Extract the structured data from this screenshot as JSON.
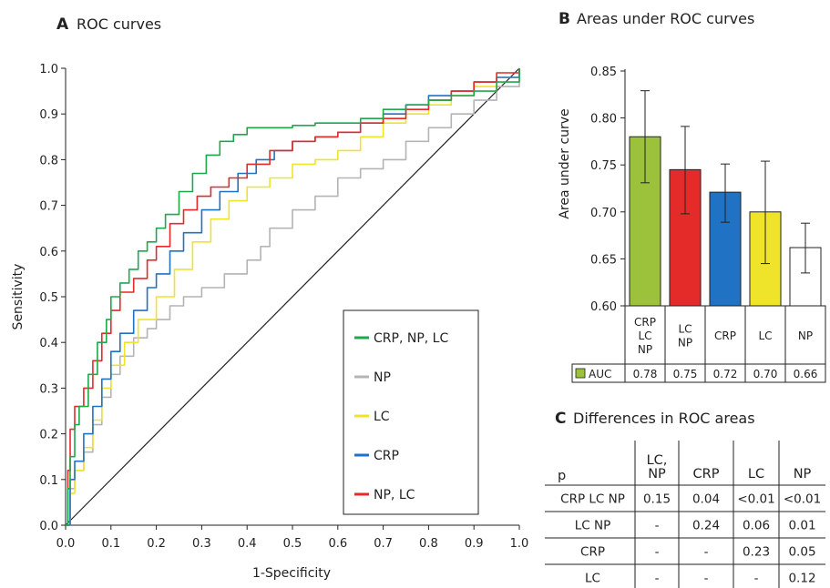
{
  "chart_data": [
    {
      "panel": "A",
      "type": "line",
      "title": "ROC curves",
      "xlabel": "1-Specificity",
      "ylabel": "Sensitivity",
      "xlim": [
        0,
        1
      ],
      "ylim": [
        0,
        1
      ],
      "x_ticks": [
        "0.0",
        "0.1",
        "0.2",
        "0.3",
        "0.4",
        "0.5",
        "0.6",
        "0.7",
        "0.8",
        "0.9",
        "1.0"
      ],
      "y_ticks": [
        "0.0",
        "0.1",
        "0.2",
        "0.3",
        "0.4",
        "0.5",
        "0.6",
        "0.7",
        "0.8",
        "0.9",
        "1.0"
      ],
      "grid": false,
      "legend_position": "bottom-right",
      "series": [
        {
          "name": "CRP, NP, LC",
          "color": "#1fa84a",
          "points": [
            [
              0,
              0
            ],
            [
              0.005,
              0.08
            ],
            [
              0.01,
              0.15
            ],
            [
              0.02,
              0.22
            ],
            [
              0.03,
              0.26
            ],
            [
              0.05,
              0.33
            ],
            [
              0.07,
              0.4
            ],
            [
              0.09,
              0.45
            ],
            [
              0.1,
              0.5
            ],
            [
              0.12,
              0.53
            ],
            [
              0.14,
              0.56
            ],
            [
              0.16,
              0.6
            ],
            [
              0.18,
              0.62
            ],
            [
              0.2,
              0.65
            ],
            [
              0.22,
              0.68
            ],
            [
              0.25,
              0.73
            ],
            [
              0.28,
              0.77
            ],
            [
              0.31,
              0.81
            ],
            [
              0.34,
              0.84
            ],
            [
              0.37,
              0.855
            ],
            [
              0.4,
              0.87
            ],
            [
              0.45,
              0.87
            ],
            [
              0.5,
              0.875
            ],
            [
              0.55,
              0.88
            ],
            [
              0.6,
              0.88
            ],
            [
              0.65,
              0.89
            ],
            [
              0.7,
              0.91
            ],
            [
              0.75,
              0.92
            ],
            [
              0.8,
              0.93
            ],
            [
              0.85,
              0.94
            ],
            [
              0.9,
              0.95
            ],
            [
              0.95,
              0.97
            ],
            [
              1.0,
              1.0
            ]
          ]
        },
        {
          "name": "NP",
          "color": "#b4b4b4",
          "points": [
            [
              0,
              0
            ],
            [
              0.01,
              0.08
            ],
            [
              0.02,
              0.12
            ],
            [
              0.04,
              0.16
            ],
            [
              0.06,
              0.22
            ],
            [
              0.08,
              0.28
            ],
            [
              0.1,
              0.33
            ],
            [
              0.12,
              0.37
            ],
            [
              0.15,
              0.41
            ],
            [
              0.18,
              0.43
            ],
            [
              0.2,
              0.45
            ],
            [
              0.23,
              0.48
            ],
            [
              0.26,
              0.5
            ],
            [
              0.3,
              0.52
            ],
            [
              0.35,
              0.55
            ],
            [
              0.4,
              0.58
            ],
            [
              0.43,
              0.61
            ],
            [
              0.45,
              0.65
            ],
            [
              0.5,
              0.69
            ],
            [
              0.55,
              0.72
            ],
            [
              0.6,
              0.76
            ],
            [
              0.65,
              0.78
            ],
            [
              0.7,
              0.8
            ],
            [
              0.75,
              0.84
            ],
            [
              0.8,
              0.87
            ],
            [
              0.85,
              0.9
            ],
            [
              0.9,
              0.93
            ],
            [
              0.95,
              0.96
            ],
            [
              1.0,
              1.0
            ]
          ]
        },
        {
          "name": "LC",
          "color": "#f0e42a",
          "points": [
            [
              0,
              0
            ],
            [
              0.01,
              0.07
            ],
            [
              0.02,
              0.12
            ],
            [
              0.04,
              0.17
            ],
            [
              0.06,
              0.23
            ],
            [
              0.08,
              0.3
            ],
            [
              0.1,
              0.35
            ],
            [
              0.13,
              0.4
            ],
            [
              0.16,
              0.45
            ],
            [
              0.2,
              0.5
            ],
            [
              0.24,
              0.56
            ],
            [
              0.28,
              0.62
            ],
            [
              0.32,
              0.67
            ],
            [
              0.36,
              0.71
            ],
            [
              0.4,
              0.74
            ],
            [
              0.45,
              0.76
            ],
            [
              0.5,
              0.79
            ],
            [
              0.55,
              0.8
            ],
            [
              0.6,
              0.82
            ],
            [
              0.65,
              0.85
            ],
            [
              0.7,
              0.88
            ],
            [
              0.75,
              0.9
            ],
            [
              0.8,
              0.92
            ],
            [
              0.85,
              0.94
            ],
            [
              0.9,
              0.96
            ],
            [
              0.95,
              0.98
            ],
            [
              1.0,
              1.0
            ]
          ]
        },
        {
          "name": "CRP",
          "color": "#1f72c4",
          "points": [
            [
              0,
              0
            ],
            [
              0.01,
              0.1
            ],
            [
              0.02,
              0.14
            ],
            [
              0.04,
              0.2
            ],
            [
              0.06,
              0.26
            ],
            [
              0.08,
              0.32
            ],
            [
              0.1,
              0.38
            ],
            [
              0.12,
              0.42
            ],
            [
              0.15,
              0.47
            ],
            [
              0.18,
              0.52
            ],
            [
              0.2,
              0.55
            ],
            [
              0.23,
              0.6
            ],
            [
              0.26,
              0.64
            ],
            [
              0.3,
              0.69
            ],
            [
              0.34,
              0.73
            ],
            [
              0.38,
              0.77
            ],
            [
              0.42,
              0.8
            ],
            [
              0.46,
              0.82
            ],
            [
              0.5,
              0.84
            ],
            [
              0.55,
              0.85
            ],
            [
              0.6,
              0.86
            ],
            [
              0.65,
              0.88
            ],
            [
              0.7,
              0.9
            ],
            [
              0.75,
              0.92
            ],
            [
              0.8,
              0.94
            ],
            [
              0.85,
              0.95
            ],
            [
              0.9,
              0.97
            ],
            [
              0.95,
              0.98
            ],
            [
              1.0,
              1.0
            ]
          ]
        },
        {
          "name": "NP, LC",
          "color": "#e52a2a",
          "points": [
            [
              0,
              0
            ],
            [
              0.005,
              0.12
            ],
            [
              0.01,
              0.21
            ],
            [
              0.02,
              0.26
            ],
            [
              0.04,
              0.3
            ],
            [
              0.06,
              0.36
            ],
            [
              0.08,
              0.42
            ],
            [
              0.1,
              0.47
            ],
            [
              0.12,
              0.51
            ],
            [
              0.15,
              0.54
            ],
            [
              0.18,
              0.58
            ],
            [
              0.2,
              0.61
            ],
            [
              0.23,
              0.66
            ],
            [
              0.26,
              0.69
            ],
            [
              0.29,
              0.72
            ],
            [
              0.32,
              0.74
            ],
            [
              0.36,
              0.76
            ],
            [
              0.4,
              0.79
            ],
            [
              0.45,
              0.82
            ],
            [
              0.5,
              0.84
            ],
            [
              0.55,
              0.85
            ],
            [
              0.6,
              0.86
            ],
            [
              0.65,
              0.88
            ],
            [
              0.7,
              0.89
            ],
            [
              0.75,
              0.91
            ],
            [
              0.8,
              0.93
            ],
            [
              0.85,
              0.95
            ],
            [
              0.9,
              0.97
            ],
            [
              0.95,
              0.99
            ],
            [
              1.0,
              1.0
            ]
          ]
        },
        {
          "name": "",
          "color": "#222222",
          "points": [
            [
              0,
              0
            ],
            [
              1,
              1
            ]
          ]
        }
      ]
    },
    {
      "panel": "B",
      "type": "bar",
      "title": "Areas under ROC curves",
      "ylabel": "Area under curve",
      "ylim": [
        0.6,
        0.85
      ],
      "y_ticks": [
        "0.60",
        "0.65",
        "0.70",
        "0.75",
        "0.80",
        "0.85"
      ],
      "categories": [
        [
          "CRP",
          "LC",
          "NP"
        ],
        [
          "LC",
          "NP"
        ],
        [
          "CRP"
        ],
        [
          "LC"
        ],
        [
          "NP"
        ]
      ],
      "values": [
        0.78,
        0.745,
        0.721,
        0.7,
        0.662
      ],
      "error_low": [
        0.731,
        0.698,
        0.689,
        0.645,
        0.635
      ],
      "error_high": [
        0.829,
        0.791,
        0.751,
        0.754,
        0.688
      ],
      "colors": [
        "#9cc23b",
        "#e52a2a",
        "#1f72c4",
        "#f0e42a",
        "#ffffff"
      ],
      "table_label": "AUC",
      "table_values": [
        "0.78",
        "0.75",
        "0.72",
        "0.70",
        "0.66"
      ]
    },
    {
      "panel": "C",
      "type": "table",
      "title": "Differences in ROC areas",
      "corner_label": "p",
      "columns": [
        [
          "LC,",
          "NP"
        ],
        [
          "CRP"
        ],
        [
          "LC"
        ],
        [
          "NP"
        ]
      ],
      "rows": [
        {
          "label": "CRP LC NP",
          "cells": [
            "0.15",
            "0.04",
            "<0.01",
            "<0.01"
          ]
        },
        {
          "label": "LC NP",
          "cells": [
            "-",
            "0.24",
            "0.06",
            "0.01"
          ]
        },
        {
          "label": "CRP",
          "cells": [
            "-",
            "-",
            "0.23",
            "0.05"
          ]
        },
        {
          "label": "LC",
          "cells": [
            "-",
            "-",
            "-",
            "0.12"
          ]
        }
      ]
    }
  ]
}
